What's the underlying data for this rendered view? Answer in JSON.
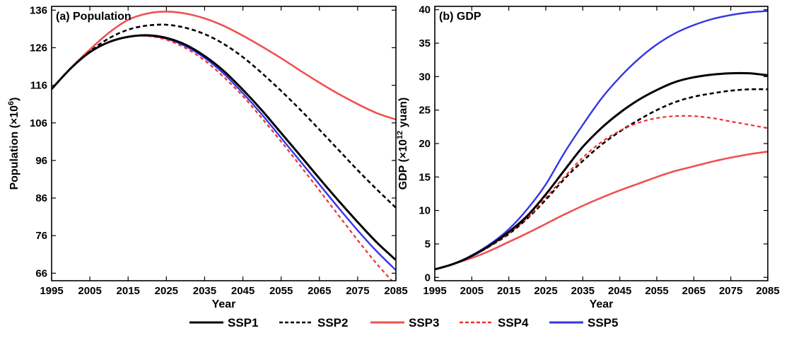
{
  "colors": {
    "SSP1": "#000000",
    "SSP2": "#000000",
    "SSP3": "#f05050",
    "SSP4": "#f03030",
    "SSP5": "#3535e6"
  },
  "legend": [
    {
      "name": "SSP1",
      "style": "solid",
      "color": "#000000"
    },
    {
      "name": "SSP2",
      "style": "dashed",
      "color": "#000000"
    },
    {
      "name": "SSP3",
      "style": "solid",
      "color": "#f05050"
    },
    {
      "name": "SSP4",
      "style": "dashed",
      "color": "#f03030"
    },
    {
      "name": "SSP5",
      "style": "solid",
      "color": "#3535e6"
    }
  ],
  "chart_data": [
    {
      "type": "line",
      "title": "(a) Population",
      "xlabel": "Year",
      "ylabel_main": "Population (×10",
      "ylabel_sup": "6",
      "ylabel_end": ")",
      "xlim": [
        1995,
        2085
      ],
      "ylim": [
        64,
        137
      ],
      "xticks": [
        "1995",
        "2005",
        "2015",
        "2025",
        "2035",
        "2045",
        "2055",
        "2065",
        "2075",
        "2085"
      ],
      "yticks": [
        "66",
        "76",
        "86",
        "96",
        "106",
        "116",
        "126",
        "136"
      ],
      "x": [
        1995,
        2000,
        2005,
        2010,
        2015,
        2020,
        2025,
        2030,
        2035,
        2040,
        2045,
        2050,
        2055,
        2060,
        2065,
        2070,
        2075,
        2080,
        2085
      ],
      "series": [
        {
          "name": "SSP1",
          "values": [
            115,
            120.5,
            124.8,
            127.5,
            128.9,
            129.3,
            128.6,
            126.8,
            123.8,
            119.8,
            114.8,
            109.3,
            103.3,
            97.3,
            91.2,
            85.3,
            79.6,
            74.2,
            69.5
          ]
        },
        {
          "name": "SSP2",
          "values": [
            115,
            120.5,
            125,
            128.5,
            130.8,
            131.9,
            132.1,
            131.3,
            129.6,
            127,
            123.5,
            119.2,
            114.5,
            109.5,
            104.2,
            98.8,
            93.4,
            88.3,
            83.4
          ]
        },
        {
          "name": "SSP3",
          "values": [
            115,
            120.6,
            125.5,
            130,
            133.4,
            135.1,
            135.6,
            135.1,
            133.8,
            131.8,
            129.2,
            126.3,
            123.2,
            119.9,
            116.7,
            113.7,
            111,
            108.6,
            106.9
          ]
        },
        {
          "name": "SSP4",
          "values": [
            115,
            120.5,
            124.8,
            127.5,
            128.9,
            129.1,
            128.1,
            125.9,
            122.6,
            118.2,
            113.1,
            107.2,
            101,
            94.6,
            88,
            81.4,
            74.8,
            68.5,
            62.8
          ]
        },
        {
          "name": "SSP5",
          "values": [
            115,
            120.5,
            124.8,
            127.5,
            128.9,
            129.2,
            128.4,
            126.4,
            123.3,
            119.1,
            113.9,
            108.2,
            102,
            95.8,
            89.6,
            83.4,
            77.4,
            71.8,
            66.8
          ]
        }
      ]
    },
    {
      "type": "line",
      "title": "(b) GDP",
      "xlabel": "Year",
      "ylabel_main": "GDP (×10",
      "ylabel_sup": "12",
      "ylabel_end": " yuan)",
      "xlim": [
        1995,
        2085
      ],
      "ylim": [
        -0.5,
        40.5
      ],
      "xticks": [
        "1995",
        "2005",
        "2015",
        "2025",
        "2035",
        "2045",
        "2055",
        "2065",
        "2075",
        "2085"
      ],
      "yticks": [
        "0",
        "5",
        "10",
        "15",
        "20",
        "25",
        "30",
        "35",
        "40"
      ],
      "x": [
        1995,
        2000,
        2005,
        2010,
        2015,
        2020,
        2025,
        2030,
        2035,
        2040,
        2045,
        2050,
        2055,
        2060,
        2065,
        2070,
        2075,
        2080,
        2085
      ],
      "series": [
        {
          "name": "SSP1",
          "values": [
            1.2,
            2,
            3.2,
            4.8,
            6.8,
            9.2,
            12.4,
            16,
            19.5,
            22.3,
            24.6,
            26.5,
            28,
            29.2,
            29.9,
            30.3,
            30.5,
            30.5,
            30.2
          ]
        },
        {
          "name": "SSP2",
          "values": [
            1.2,
            2,
            3.2,
            4.7,
            6.5,
            8.8,
            11.6,
            14.7,
            17.4,
            19.8,
            21.8,
            23.5,
            25,
            26.2,
            27,
            27.5,
            27.9,
            28.1,
            28.1
          ]
        },
        {
          "name": "SSP3",
          "values": [
            1.2,
            2,
            2.9,
            4,
            5.3,
            6.6,
            8,
            9.4,
            10.7,
            11.9,
            13,
            14,
            15,
            15.9,
            16.6,
            17.3,
            17.9,
            18.4,
            18.8
          ]
        },
        {
          "name": "SSP4",
          "values": [
            1.2,
            2,
            3.2,
            4.7,
            6.6,
            8.9,
            11.9,
            15,
            17.9,
            20.2,
            21.9,
            23.1,
            23.8,
            24.1,
            24.1,
            23.8,
            23.3,
            22.8,
            22.3
          ]
        },
        {
          "name": "SSP5",
          "values": [
            1.2,
            2,
            3.3,
            5,
            7.2,
            10.2,
            13.9,
            18.6,
            22.8,
            26.7,
            29.9,
            32.6,
            34.8,
            36.5,
            37.7,
            38.6,
            39.2,
            39.6,
            39.8
          ]
        }
      ]
    }
  ]
}
